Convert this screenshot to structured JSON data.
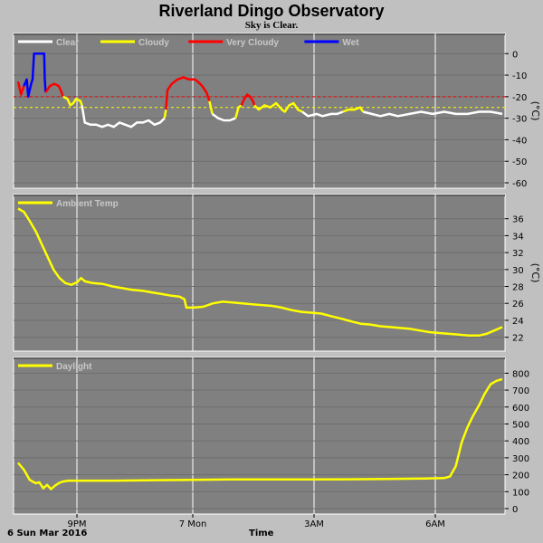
{
  "title": "Riverland Dingo Observatory",
  "subtitle": "Sky is Clear.",
  "footer": {
    "date": "6 Sun Mar 2016",
    "xlabel": "Time"
  },
  "x_ticks": [
    "9PM",
    "7 Mon",
    "3AM",
    "6AM"
  ],
  "chart_data": [
    {
      "type": "line",
      "name": "sky-temperature",
      "ylabel": "(°C)",
      "ylim": [
        -60,
        5
      ],
      "yticks": [
        0,
        -10,
        -20,
        -30,
        -40,
        -50,
        -60
      ],
      "xlim": [
        0,
        12.5
      ],
      "grid": true,
      "legend": "top-left",
      "legend_entries": [
        {
          "label": "Clear",
          "color": "#ffffff"
        },
        {
          "label": "Cloudy",
          "color": "#ffff00"
        },
        {
          "label": "Very Cloudy",
          "color": "#ff0000"
        },
        {
          "label": "Wet",
          "color": "#0000ff"
        }
      ],
      "thresholds": [
        {
          "value": -20,
          "color": "#ff0000"
        },
        {
          "value": -25,
          "color": "#ffff00"
        }
      ],
      "segments": [
        {
          "color": "#ff0000",
          "points": [
            [
              0,
              -13
            ],
            [
              0.1,
              -19
            ],
            [
              0.2,
              -15
            ]
          ]
        },
        {
          "color": "#0000ff",
          "points": [
            [
              0.2,
              -15
            ],
            [
              0.3,
              -12
            ],
            [
              0.35,
              -20
            ],
            [
              0.45,
              -14
            ],
            [
              0.5,
              -12
            ],
            [
              0.55,
              0
            ],
            [
              0.6,
              0
            ],
            [
              0.7,
              0
            ],
            [
              0.8,
              0
            ],
            [
              0.9,
              0
            ],
            [
              0.92,
              -12
            ],
            [
              0.95,
              -18
            ]
          ]
        },
        {
          "color": "#ff0000",
          "points": [
            [
              0.95,
              -18
            ],
            [
              1.1,
              -15
            ],
            [
              1.25,
              -14
            ],
            [
              1.4,
              -15
            ],
            [
              1.5,
              -18
            ],
            [
              1.55,
              -20
            ]
          ]
        },
        {
          "color": "#ffff00",
          "points": [
            [
              1.55,
              -20
            ],
            [
              1.7,
              -21
            ],
            [
              1.8,
              -24
            ],
            [
              1.9,
              -23
            ],
            [
              2.0,
              -21
            ],
            [
              2.15,
              -22
            ],
            [
              2.2,
              -24
            ]
          ]
        },
        {
          "color": "#ffffff",
          "points": [
            [
              2.2,
              -24
            ],
            [
              2.3,
              -32
            ],
            [
              2.5,
              -33
            ],
            [
              2.7,
              -33
            ],
            [
              2.9,
              -34
            ],
            [
              3.1,
              -33
            ],
            [
              3.3,
              -34
            ],
            [
              3.5,
              -32
            ],
            [
              3.7,
              -33
            ],
            [
              3.9,
              -34
            ],
            [
              4.1,
              -32
            ],
            [
              4.3,
              -32
            ],
            [
              4.5,
              -31
            ],
            [
              4.7,
              -33
            ],
            [
              4.9,
              -32
            ],
            [
              5.05,
              -30
            ]
          ]
        },
        {
          "color": "#ffff00",
          "points": [
            [
              5.05,
              -30
            ],
            [
              5.1,
              -26
            ]
          ]
        },
        {
          "color": "#ff0000",
          "points": [
            [
              5.1,
              -26
            ],
            [
              5.15,
              -17
            ],
            [
              5.3,
              -14
            ],
            [
              5.5,
              -12
            ],
            [
              5.7,
              -11
            ],
            [
              5.9,
              -12
            ],
            [
              6.1,
              -12
            ],
            [
              6.2,
              -13
            ],
            [
              6.35,
              -15
            ],
            [
              6.5,
              -18
            ],
            [
              6.6,
              -22
            ]
          ]
        },
        {
          "color": "#ffff00",
          "points": [
            [
              6.6,
              -22
            ],
            [
              6.7,
              -28
            ]
          ]
        },
        {
          "color": "#ffffff",
          "points": [
            [
              6.7,
              -28
            ],
            [
              6.9,
              -30
            ],
            [
              7.1,
              -31
            ],
            [
              7.3,
              -31
            ],
            [
              7.5,
              -30
            ]
          ]
        },
        {
          "color": "#ffff00",
          "points": [
            [
              7.5,
              -30
            ],
            [
              7.6,
              -25
            ],
            [
              7.7,
              -24
            ]
          ]
        },
        {
          "color": "#ff0000",
          "points": [
            [
              7.7,
              -24
            ],
            [
              7.8,
              -21
            ],
            [
              7.9,
              -19
            ],
            [
              8.0,
              -20
            ],
            [
              8.1,
              -22
            ],
            [
              8.15,
              -24
            ]
          ]
        },
        {
          "color": "#ffff00",
          "points": [
            [
              8.15,
              -24
            ],
            [
              8.3,
              -26
            ],
            [
              8.5,
              -24
            ],
            [
              8.7,
              -25
            ],
            [
              8.9,
              -23
            ],
            [
              9.1,
              -26
            ],
            [
              9.2,
              -27
            ],
            [
              9.35,
              -24
            ],
            [
              9.5,
              -23
            ],
            [
              9.65,
              -26
            ],
            [
              9.8,
              -27
            ]
          ]
        },
        {
          "color": "#ffffff",
          "points": [
            [
              9.8,
              -27
            ],
            [
              10.0,
              -29
            ],
            [
              10.3,
              -28
            ],
            [
              10.5,
              -29
            ],
            [
              10.8,
              -28
            ],
            [
              11.0,
              -28
            ],
            [
              11.2,
              -27
            ]
          ]
        },
        {
          "color": "#ffff00",
          "points": [
            [
              11.2,
              -27
            ],
            [
              11.4,
              -26
            ],
            [
              11.6,
              -26
            ],
            [
              11.8,
              -25
            ],
            [
              11.9,
              -27
            ]
          ]
        },
        {
          "color": "#ffffff",
          "points": [
            [
              11.9,
              -27
            ],
            [
              12.2,
              -28
            ],
            [
              12.5,
              -29
            ],
            [
              12.8,
              -28
            ],
            [
              13.1,
              -29
            ],
            [
              13.5,
              -28
            ],
            [
              13.9,
              -27
            ],
            [
              14.3,
              -28
            ],
            [
              14.7,
              -27
            ],
            [
              15.1,
              -28
            ],
            [
              15.5,
              -28
            ],
            [
              15.9,
              -27
            ],
            [
              16.3,
              -27
            ],
            [
              16.7,
              -28
            ]
          ]
        }
      ]
    },
    {
      "type": "line",
      "name": "ambient-temperature",
      "ylabel": "(°C)",
      "ylim": [
        21,
        38
      ],
      "yticks": [
        36,
        34,
        32,
        30,
        28,
        26,
        24,
        22
      ],
      "grid": true,
      "legend": "top-left",
      "legend_entries": [
        {
          "label": "Ambient Temp",
          "color": "#ffff00"
        }
      ],
      "series": [
        {
          "color": "#ffff00",
          "points": [
            [
              0,
              37.2
            ],
            [
              0.3,
              36.8
            ],
            [
              0.6,
              35.7
            ],
            [
              0.9,
              34.5
            ],
            [
              1.2,
              33.0
            ],
            [
              1.5,
              31.5
            ],
            [
              1.8,
              30.0
            ],
            [
              2.1,
              29.0
            ],
            [
              2.4,
              28.4
            ],
            [
              2.7,
              28.2
            ],
            [
              3.0,
              28.5
            ],
            [
              3.2,
              29.0
            ],
            [
              3.4,
              28.6
            ],
            [
              3.8,
              28.4
            ],
            [
              4.3,
              28.3
            ],
            [
              4.8,
              28.0
            ],
            [
              5.3,
              27.8
            ],
            [
              5.8,
              27.6
            ],
            [
              6.3,
              27.5
            ],
            [
              6.8,
              27.3
            ],
            [
              7.3,
              27.1
            ],
            [
              7.8,
              26.9
            ],
            [
              8.2,
              26.8
            ],
            [
              8.45,
              26.5
            ],
            [
              8.55,
              25.5
            ],
            [
              8.9,
              25.5
            ],
            [
              9.4,
              25.6
            ],
            [
              9.9,
              26.0
            ],
            [
              10.4,
              26.2
            ],
            [
              10.9,
              26.1
            ],
            [
              11.4,
              26.0
            ],
            [
              11.9,
              25.9
            ],
            [
              12.4,
              25.8
            ],
            [
              12.9,
              25.7
            ],
            [
              13.4,
              25.5
            ],
            [
              13.9,
              25.2
            ],
            [
              14.4,
              25.0
            ],
            [
              14.9,
              24.9
            ],
            [
              15.4,
              24.8
            ],
            [
              15.9,
              24.5
            ],
            [
              16.4,
              24.2
            ],
            [
              16.9,
              23.9
            ],
            [
              17.4,
              23.6
            ],
            [
              17.9,
              23.5
            ],
            [
              18.4,
              23.3
            ],
            [
              18.9,
              23.2
            ],
            [
              19.4,
              23.1
            ],
            [
              19.9,
              23.0
            ],
            [
              20.4,
              22.8
            ],
            [
              20.9,
              22.6
            ],
            [
              21.4,
              22.5
            ],
            [
              21.9,
              22.4
            ],
            [
              22.4,
              22.3
            ],
            [
              22.9,
              22.2
            ],
            [
              23.4,
              22.2
            ],
            [
              23.8,
              22.4
            ],
            [
              24.2,
              22.8
            ],
            [
              24.6,
              23.2
            ]
          ]
        }
      ]
    },
    {
      "type": "line",
      "name": "daylight",
      "ylabel": "",
      "ylim": [
        0,
        850
      ],
      "yticks": [
        800,
        700,
        600,
        500,
        400,
        300,
        200,
        100,
        0
      ],
      "grid": true,
      "legend": "top-left",
      "legend_entries": [
        {
          "label": "Daylight",
          "color": "#ffff00"
        }
      ],
      "series": [
        {
          "color": "#ffff00",
          "points": [
            [
              0,
              270
            ],
            [
              0.3,
              230
            ],
            [
              0.6,
              170
            ],
            [
              0.9,
              150
            ],
            [
              1.1,
              155
            ],
            [
              1.3,
              120
            ],
            [
              1.5,
              140
            ],
            [
              1.7,
              115
            ],
            [
              1.9,
              135
            ],
            [
              2.1,
              150
            ],
            [
              2.3,
              160
            ],
            [
              2.6,
              165
            ],
            [
              3.5,
              165
            ],
            [
              5,
              165
            ],
            [
              7,
              168
            ],
            [
              9,
              170
            ],
            [
              11,
              172
            ],
            [
              13,
              172
            ],
            [
              15,
              172
            ],
            [
              17,
              173
            ],
            [
              19,
              175
            ],
            [
              21,
              178
            ],
            [
              22,
              180
            ],
            [
              22.3,
              190
            ],
            [
              22.6,
              250
            ],
            [
              22.9,
              390
            ],
            [
              23.2,
              480
            ],
            [
              23.5,
              550
            ],
            [
              23.8,
              610
            ],
            [
              24.1,
              680
            ],
            [
              24.4,
              735
            ],
            [
              24.7,
              755
            ],
            [
              25.0,
              765
            ]
          ]
        }
      ]
    }
  ]
}
